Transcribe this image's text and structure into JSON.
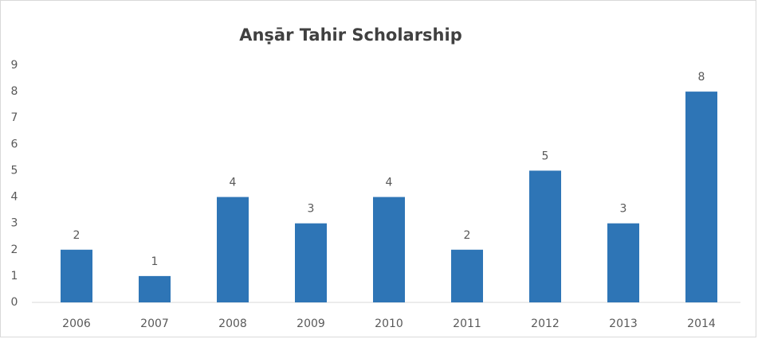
{
  "chart_data": {
    "type": "bar",
    "title": "Anṣār Tahir Scholarship",
    "categories": [
      "2006",
      "2007",
      "2008",
      "2009",
      "2010",
      "2011",
      "2012",
      "2013",
      "2014"
    ],
    "values": [
      2,
      1,
      4,
      3,
      4,
      2,
      5,
      3,
      8
    ],
    "color": "#2e75b6",
    "ylim": [
      0,
      9
    ],
    "yticks": [
      0,
      1,
      2,
      3,
      4,
      5,
      6,
      7,
      8,
      9
    ],
    "grid": false,
    "data_labels": true
  }
}
